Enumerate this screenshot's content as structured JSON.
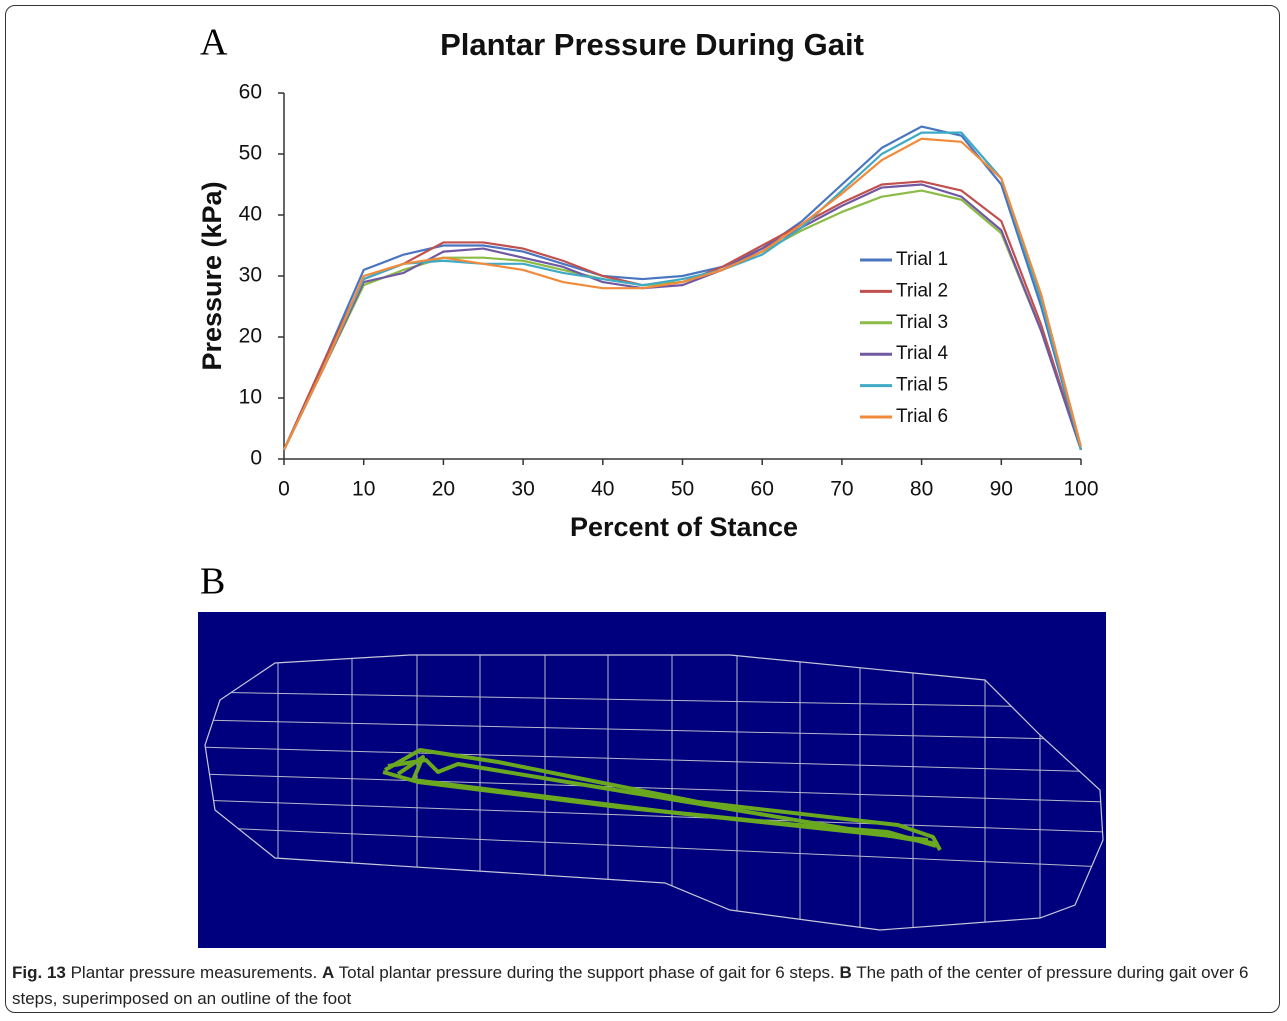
{
  "panel_a_label": "A",
  "panel_b_label": "B",
  "chart_data": {
    "type": "line",
    "title": "Plantar Pressure During Gait",
    "x_label": "Percent of Stance",
    "y_label": "Pressure (kPa)",
    "x": [
      0,
      5,
      10,
      15,
      20,
      25,
      30,
      35,
      40,
      45,
      50,
      55,
      60,
      65,
      70,
      75,
      80,
      85,
      90,
      95,
      100
    ],
    "xlim": [
      0,
      100
    ],
    "xticks": [
      0,
      10,
      20,
      30,
      40,
      50,
      60,
      70,
      80,
      90,
      100
    ],
    "ylim": [
      0,
      60
    ],
    "yticks": [
      0,
      10,
      20,
      30,
      40,
      50,
      60
    ],
    "legend": "right",
    "series": [
      {
        "name": "Trial 1",
        "color": "#4a75c0",
        "values": [
          1.5,
          16,
          31,
          33.5,
          35,
          35,
          34,
          32,
          30,
          29.5,
          30,
          31.5,
          34.5,
          39,
          45,
          51,
          54.5,
          53,
          45,
          25,
          1.5
        ]
      },
      {
        "name": "Trial 2",
        "color": "#c0504d",
        "values": [
          1.5,
          16,
          29.5,
          32,
          35.5,
          35.5,
          34.5,
          32.5,
          30,
          28.5,
          29,
          31.5,
          35,
          38.5,
          42,
          45,
          45.5,
          44,
          39,
          22,
          1.5
        ]
      },
      {
        "name": "Trial 3",
        "color": "#8cbb45",
        "values": [
          1.5,
          15,
          28.5,
          31,
          33,
          33,
          32.5,
          31,
          29.5,
          28.5,
          29,
          31,
          34,
          37.5,
          40.5,
          43,
          44,
          42.5,
          37,
          21,
          1.5
        ]
      },
      {
        "name": "Trial 4",
        "color": "#7058a3",
        "values": [
          1.5,
          15,
          29,
          30.5,
          34,
          34.5,
          33,
          31.5,
          29,
          28,
          28.5,
          31,
          34.5,
          38,
          41.5,
          44.5,
          45,
          43,
          37.5,
          21,
          1.5
        ]
      },
      {
        "name": "Trial 5",
        "color": "#3fa9c6",
        "values": [
          1.5,
          15,
          29.5,
          32,
          32.5,
          32,
          32,
          30.5,
          29.5,
          28.5,
          29.5,
          31,
          33.5,
          38,
          44,
          50,
          53.5,
          53.5,
          46,
          26,
          1.5
        ]
      },
      {
        "name": "Trial 6",
        "color": "#f18b3b",
        "values": [
          1.5,
          15,
          30,
          32,
          33,
          32,
          31,
          29,
          28,
          28,
          29,
          31,
          34,
          38.5,
          43.5,
          49,
          52.5,
          52,
          46,
          27,
          2
        ]
      }
    ]
  },
  "caption": {
    "label": "Fig. 13",
    "title": "Plantar pressure measurements.",
    "parts": [
      {
        "label": "A",
        "text": "Total plantar pressure during the support phase of gait for 6 steps."
      },
      {
        "label": "B",
        "text": "The path of the center of pressure during gait over 6 steps, superimposed on an outline of the foot"
      }
    ]
  }
}
